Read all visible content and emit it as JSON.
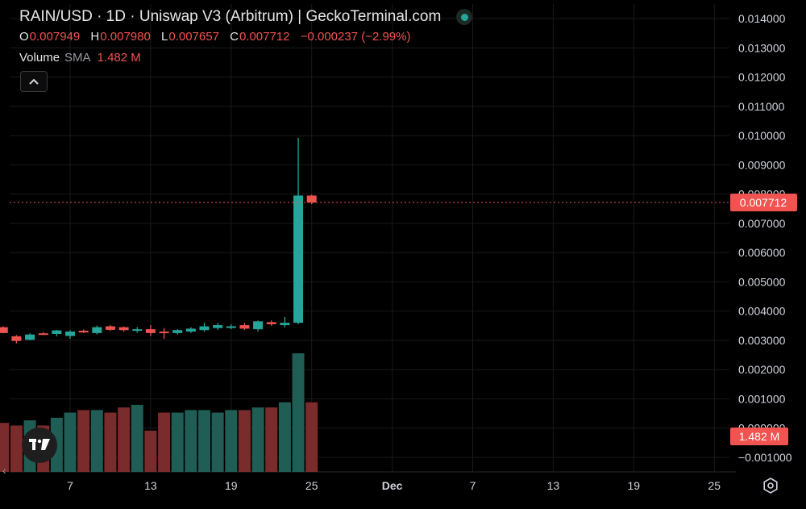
{
  "header": {
    "title": "RAIN/USD · 1D · Uniswap V3 (Arbitrum) | GeckoTerminal.com",
    "status": "live-indicator-dot",
    "ohlc": [
      {
        "key": "O",
        "value": "0.007949"
      },
      {
        "key": "H",
        "value": "0.007980"
      },
      {
        "key": "L",
        "value": "0.007657"
      },
      {
        "key": "C",
        "value": "0.007712"
      }
    ],
    "change": "−0.000237 (−2.99%)"
  },
  "volume_legend": {
    "label": "Volume",
    "sma": "SMA",
    "value": "1.482 M"
  },
  "price_badge": "0.007712",
  "volume_badge": "1.482 M",
  "colors": {
    "up": "#26a69a",
    "down": "#ef5350",
    "grid": "#1a1a1a",
    "text": "#d1d4dc",
    "badge": "#f05350"
  },
  "icons": {
    "collapse": "chevron-up-icon",
    "logo": "tradingview-logo-icon",
    "settings": "gear-icon",
    "scroll": "chevron-left-icon"
  },
  "chart_data": {
    "type": "candlestick",
    "y_ticks": [
      "0.014000",
      "0.013000",
      "0.012000",
      "0.011000",
      "0.010000",
      "0.009000",
      "0.008000",
      "0.007000",
      "0.006000",
      "0.005000",
      "0.004000",
      "0.003000",
      "0.002000",
      "0.001000",
      "0.000000",
      "−0.001000"
    ],
    "ylim": [
      -0.0013,
      0.0146
    ],
    "x_ticks": [
      "7",
      "13",
      "19",
      "25",
      "Dec",
      "7",
      "13",
      "19",
      "25"
    ],
    "x_tick_days": [
      7,
      13,
      19,
      25,
      31,
      37,
      43,
      49,
      55
    ],
    "xlim": [
      2.0,
      56.6
    ],
    "last_price": 0.007712,
    "candles": [
      {
        "day": 2,
        "o": 0.00345,
        "h": 0.00348,
        "l": 0.00325,
        "c": 0.00325
      },
      {
        "day": 3,
        "o": 0.00314,
        "h": 0.00318,
        "l": 0.0029,
        "c": 0.00298
      },
      {
        "day": 4,
        "o": 0.00302,
        "h": 0.00324,
        "l": 0.003,
        "c": 0.0032
      },
      {
        "day": 5,
        "o": 0.00324,
        "h": 0.00328,
        "l": 0.00318,
        "c": 0.0032
      },
      {
        "day": 6,
        "o": 0.00322,
        "h": 0.00336,
        "l": 0.00314,
        "c": 0.00334
      },
      {
        "day": 7,
        "o": 0.00315,
        "h": 0.00335,
        "l": 0.00305,
        "c": 0.0033
      },
      {
        "day": 8,
        "o": 0.00333,
        "h": 0.00337,
        "l": 0.00325,
        "c": 0.00327
      },
      {
        "day": 9,
        "o": 0.00325,
        "h": 0.0035,
        "l": 0.0032,
        "c": 0.00345
      },
      {
        "day": 10,
        "o": 0.00348,
        "h": 0.00352,
        "l": 0.00332,
        "c": 0.00336
      },
      {
        "day": 11,
        "o": 0.00345,
        "h": 0.00348,
        "l": 0.0033,
        "c": 0.00335
      },
      {
        "day": 12,
        "o": 0.00336,
        "h": 0.00345,
        "l": 0.00326,
        "c": 0.00338
      },
      {
        "day": 13,
        "o": 0.00338,
        "h": 0.00352,
        "l": 0.00315,
        "c": 0.00325
      },
      {
        "day": 14,
        "o": 0.0033,
        "h": 0.00342,
        "l": 0.00305,
        "c": 0.00325
      },
      {
        "day": 15,
        "o": 0.00325,
        "h": 0.00338,
        "l": 0.0032,
        "c": 0.00335
      },
      {
        "day": 16,
        "o": 0.0033,
        "h": 0.00345,
        "l": 0.00325,
        "c": 0.0034
      },
      {
        "day": 17,
        "o": 0.00335,
        "h": 0.0036,
        "l": 0.0033,
        "c": 0.00348
      },
      {
        "day": 18,
        "o": 0.00342,
        "h": 0.0036,
        "l": 0.00336,
        "c": 0.00352
      },
      {
        "day": 19,
        "o": 0.00345,
        "h": 0.00355,
        "l": 0.00338,
        "c": 0.00348
      },
      {
        "day": 20,
        "o": 0.00352,
        "h": 0.0036,
        "l": 0.00335,
        "c": 0.0034
      },
      {
        "day": 21,
        "o": 0.00338,
        "h": 0.00368,
        "l": 0.0033,
        "c": 0.00365
      },
      {
        "day": 22,
        "o": 0.00362,
        "h": 0.00368,
        "l": 0.0035,
        "c": 0.00355
      },
      {
        "day": 23,
        "o": 0.00352,
        "h": 0.0038,
        "l": 0.00345,
        "c": 0.0036
      },
      {
        "day": 24,
        "o": 0.0036,
        "h": 0.00992,
        "l": 0.00355,
        "c": 0.00795
      },
      {
        "day": 25,
        "o": 0.007949,
        "h": 0.00798,
        "l": 0.007657,
        "c": 0.007712
      }
    ],
    "volume": {
      "ylim": [
        0,
        2.3
      ],
      "bars": [
        0.95,
        0.9,
        1.0,
        0.9,
        1.05,
        1.15,
        1.2,
        1.2,
        1.15,
        1.25,
        1.3,
        0.8,
        1.15,
        1.15,
        1.2,
        1.2,
        1.15,
        1.2,
        1.2,
        1.25,
        1.25,
        1.35,
        2.3,
        1.35
      ]
    }
  }
}
